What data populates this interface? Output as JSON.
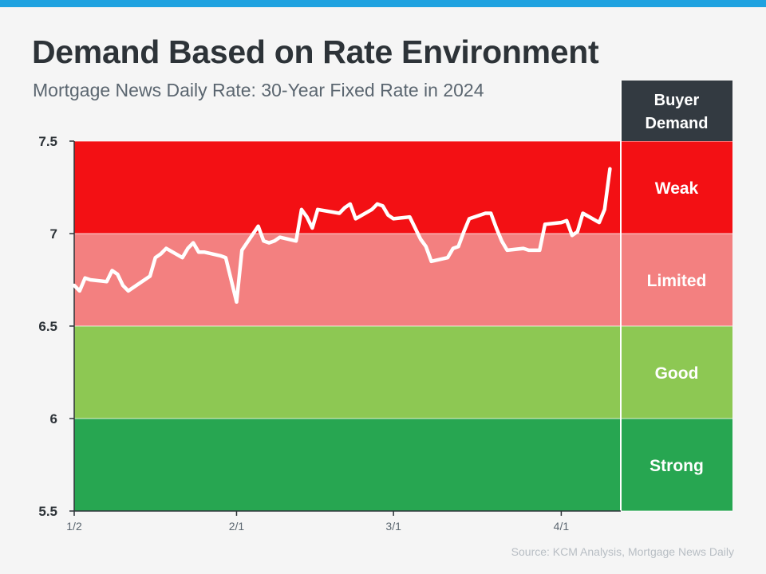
{
  "header": {
    "title": "Demand Based on Rate Environment",
    "subtitle": "Mortgage News Daily Rate: 30-Year Fixed Rate in 2024"
  },
  "footer": {
    "source": "Source: KCM Analysis, Mortgage News Daily"
  },
  "colors": {
    "top_bar": "#1fa2e0",
    "weak": "#f31014",
    "limited": "#f38080",
    "good": "#8dc853",
    "strong": "#27a651",
    "demand_header_bg": "#333a41",
    "line": "#ffffff"
  },
  "chart_data": {
    "type": "line",
    "title": "Demand Based on Rate Environment",
    "subtitle": "Mortgage News Daily Rate: 30-Year Fixed Rate in 2024",
    "xlabel": "",
    "ylabel": "",
    "ylim": [
      5.5,
      7.5
    ],
    "yticks": [
      7.5,
      7,
      6.5,
      6,
      5.5
    ],
    "ytick_labels": [
      "7.5",
      "7",
      "6.5",
      "6",
      "5.5"
    ],
    "xticks": [
      {
        "label": "1/2",
        "date": "2024-01-02"
      },
      {
        "label": "2/1",
        "date": "2024-02-01"
      },
      {
        "label": "3/1",
        "date": "2024-03-01"
      },
      {
        "label": "4/1",
        "date": "2024-04-01"
      }
    ],
    "x_range": [
      "2024-01-02",
      "2024-04-12"
    ],
    "grid": true,
    "demand_header": "Buyer\nDemand",
    "bands": [
      {
        "label": "Weak",
        "min": 7.0,
        "max": 7.5,
        "color": "#f31014"
      },
      {
        "label": "Limited",
        "min": 6.5,
        "max": 7.0,
        "color": "#f38080"
      },
      {
        "label": "Good",
        "min": 6.0,
        "max": 6.5,
        "color": "#8dc853"
      },
      {
        "label": "Strong",
        "min": 5.5,
        "max": 6.0,
        "color": "#27a651"
      }
    ],
    "series": [
      {
        "color": "#ffffff",
        "points": [
          [
            "2024-01-02",
            6.72
          ],
          [
            "2024-01-03",
            6.69
          ],
          [
            "2024-01-04",
            6.76
          ],
          [
            "2024-01-05",
            6.75
          ],
          [
            "2024-01-08",
            6.74
          ],
          [
            "2024-01-09",
            6.8
          ],
          [
            "2024-01-10",
            6.78
          ],
          [
            "2024-01-11",
            6.72
          ],
          [
            "2024-01-12",
            6.69
          ],
          [
            "2024-01-16",
            6.77
          ],
          [
            "2024-01-17",
            6.87
          ],
          [
            "2024-01-18",
            6.89
          ],
          [
            "2024-01-19",
            6.92
          ],
          [
            "2024-01-22",
            6.87
          ],
          [
            "2024-01-23",
            6.92
          ],
          [
            "2024-01-24",
            6.95
          ],
          [
            "2024-01-25",
            6.9
          ],
          [
            "2024-01-26",
            6.9
          ],
          [
            "2024-01-29",
            6.88
          ],
          [
            "2024-01-30",
            6.87
          ],
          [
            "2024-01-31",
            6.75
          ],
          [
            "2024-02-01",
            6.63
          ],
          [
            "2024-02-02",
            6.91
          ],
          [
            "2024-02-05",
            7.04
          ],
          [
            "2024-02-06",
            6.96
          ],
          [
            "2024-02-07",
            6.95
          ],
          [
            "2024-02-08",
            6.96
          ],
          [
            "2024-02-09",
            6.98
          ],
          [
            "2024-02-12",
            6.96
          ],
          [
            "2024-02-13",
            7.13
          ],
          [
            "2024-02-14",
            7.09
          ],
          [
            "2024-02-15",
            7.03
          ],
          [
            "2024-02-16",
            7.13
          ],
          [
            "2024-02-20",
            7.11
          ],
          [
            "2024-02-21",
            7.14
          ],
          [
            "2024-02-22",
            7.16
          ],
          [
            "2024-02-23",
            7.08
          ],
          [
            "2024-02-26",
            7.13
          ],
          [
            "2024-02-27",
            7.16
          ],
          [
            "2024-02-28",
            7.15
          ],
          [
            "2024-02-29",
            7.1
          ],
          [
            "2024-03-01",
            7.08
          ],
          [
            "2024-03-04",
            7.09
          ],
          [
            "2024-03-05",
            7.03
          ],
          [
            "2024-03-06",
            6.97
          ],
          [
            "2024-03-07",
            6.93
          ],
          [
            "2024-03-08",
            6.85
          ],
          [
            "2024-03-11",
            6.87
          ],
          [
            "2024-03-12",
            6.92
          ],
          [
            "2024-03-13",
            6.93
          ],
          [
            "2024-03-14",
            7.01
          ],
          [
            "2024-03-15",
            7.08
          ],
          [
            "2024-03-18",
            7.11
          ],
          [
            "2024-03-19",
            7.11
          ],
          [
            "2024-03-20",
            7.03
          ],
          [
            "2024-03-21",
            6.96
          ],
          [
            "2024-03-22",
            6.91
          ],
          [
            "2024-03-25",
            6.92
          ],
          [
            "2024-03-26",
            6.91
          ],
          [
            "2024-03-27",
            6.91
          ],
          [
            "2024-03-28",
            6.91
          ],
          [
            "2024-03-29",
            7.05
          ],
          [
            "2024-04-01",
            7.06
          ],
          [
            "2024-04-02",
            7.07
          ],
          [
            "2024-04-03",
            6.99
          ],
          [
            "2024-04-04",
            7.01
          ],
          [
            "2024-04-05",
            7.11
          ],
          [
            "2024-04-08",
            7.06
          ],
          [
            "2024-04-09",
            7.13
          ],
          [
            "2024-04-10",
            7.35
          ]
        ]
      }
    ]
  }
}
